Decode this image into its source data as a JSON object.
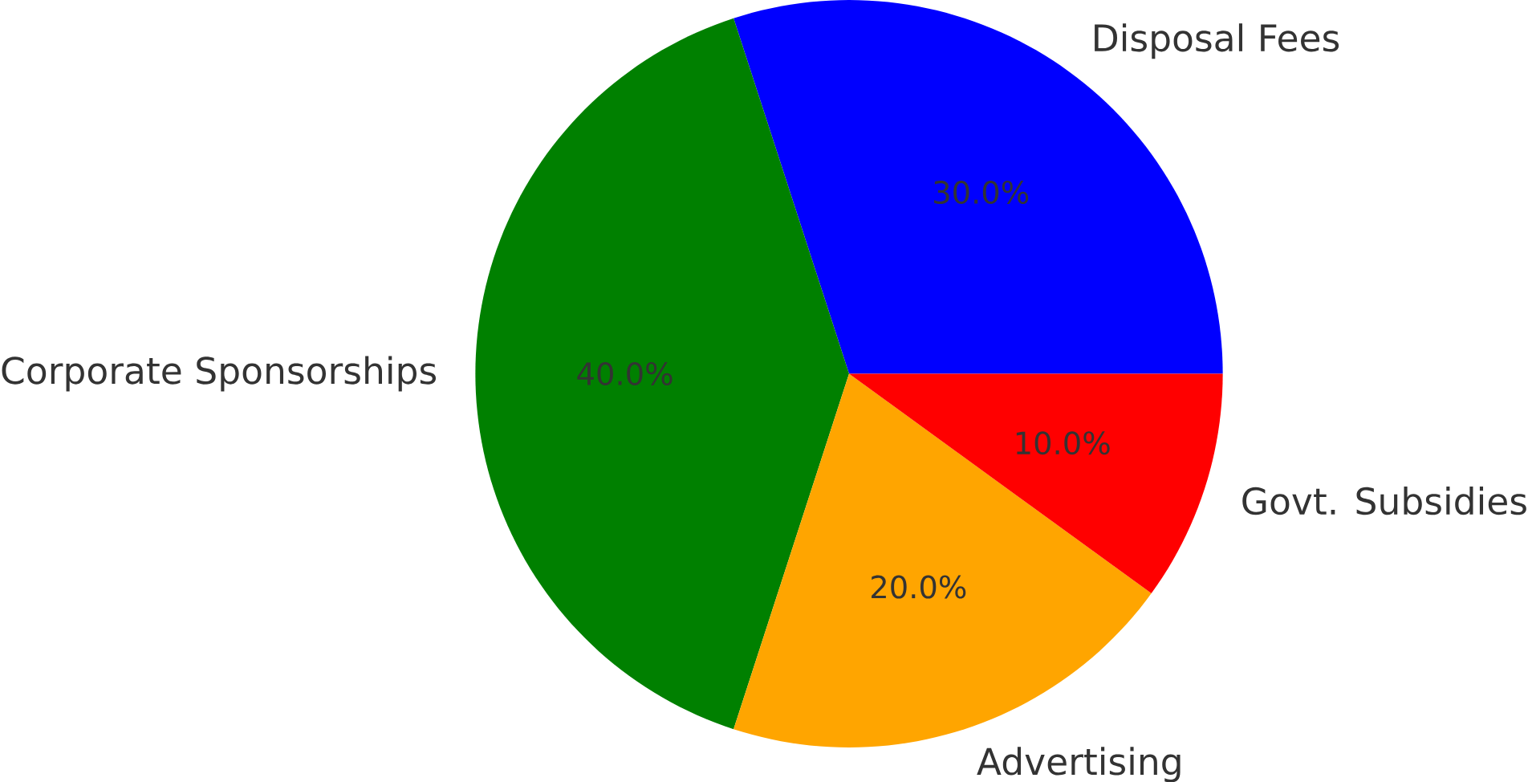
{
  "chart_data": {
    "type": "pie",
    "categories": [
      "Disposal Fees",
      "Corporate Sponsorships",
      "Advertising",
      "Govt. Subsidies"
    ],
    "values": [
      30,
      40,
      20,
      10
    ],
    "colors": [
      "#0000ff",
      "#008000",
      "#ffa500",
      "#ff0000"
    ],
    "value_labels": [
      "30.0%",
      "40.0%",
      "20.0%",
      "10.0%"
    ]
  }
}
